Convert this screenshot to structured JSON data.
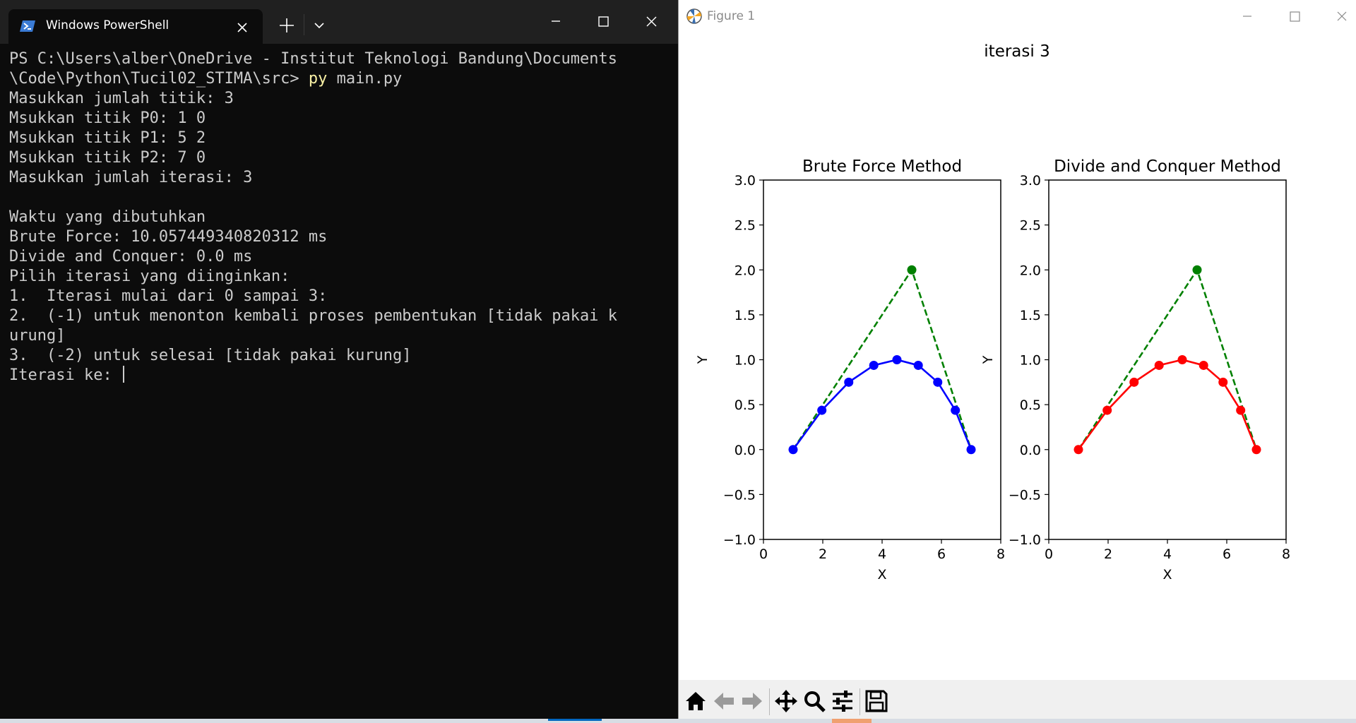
{
  "terminal": {
    "tab_title": "Windows PowerShell",
    "prompt_path": "PS C:\\Users\\alber\\OneDrive - Institut Teknologi Bandung\\Documents",
    "prompt_path_cont": "\\Code\\Python\\Tucil02_STIMA\\src> ",
    "command_keyword": "py",
    "command_args": " main.py",
    "lines": [
      "Masukkan jumlah titik: 3",
      "Msukkan titik P0: 1 0",
      "Msukkan titik P1: 5 2",
      "Msukkan titik P2: 7 0",
      "Masukkan jumlah iterasi: 3",
      "",
      "Waktu yang dibutuhkan",
      "Brute Force: 10.057449340820312 ms",
      "Divide and Conquer: 0.0 ms",
      "Pilih iterasi yang diinginkan:",
      "1.  Iterasi mulai dari 0 sampai 3:",
      "2.  (-1) untuk menonton kembali proses pembentukan [tidak pakai k",
      "urung]",
      "3.  (-2) untuk selesai [tidak pakai kurung]"
    ],
    "input_prompt": "Iterasi ke: "
  },
  "figure": {
    "window_title": "Figure 1",
    "suptitle": "iterasi 3"
  },
  "chart_data": [
    {
      "type": "line",
      "title": "Brute Force Method",
      "xlabel": "X",
      "ylabel": "Y",
      "xlim": [
        0,
        8
      ],
      "ylim": [
        -1.0,
        3.0
      ],
      "xticks": [
        "0",
        "2",
        "4",
        "6",
        "8"
      ],
      "yticks": [
        "−1.0",
        "−0.5",
        "0.0",
        "0.5",
        "1.0",
        "1.5",
        "2.0",
        "2.5",
        "3.0"
      ],
      "series": [
        {
          "style": "dashed",
          "color": "#008000",
          "x": [
            1,
            5,
            7
          ],
          "y": [
            0,
            2,
            0
          ]
        },
        {
          "style": "solid-markers",
          "color": "#0000ff",
          "x": [
            1,
            1.969,
            2.875,
            3.719,
            4.5,
            5.219,
            5.875,
            6.469,
            7
          ],
          "y": [
            0,
            0.4375,
            0.75,
            0.9375,
            1.0,
            0.9375,
            0.75,
            0.4375,
            0
          ]
        }
      ]
    },
    {
      "type": "line",
      "title": "Divide and Conquer Method",
      "xlabel": "X",
      "ylabel": "Y",
      "xlim": [
        0,
        8
      ],
      "ylim": [
        -1.0,
        3.0
      ],
      "xticks": [
        "0",
        "2",
        "4",
        "6",
        "8"
      ],
      "yticks": [
        "−1.0",
        "−0.5",
        "0.0",
        "0.5",
        "1.0",
        "1.5",
        "2.0",
        "2.5",
        "3.0"
      ],
      "series": [
        {
          "style": "dashed",
          "color": "#008000",
          "x": [
            1,
            5,
            7
          ],
          "y": [
            0,
            2,
            0
          ]
        },
        {
          "style": "solid-markers",
          "color": "#ff0000",
          "x": [
            1,
            1.969,
            2.875,
            3.719,
            4.5,
            5.219,
            5.875,
            6.469,
            7
          ],
          "y": [
            0,
            0.4375,
            0.75,
            0.9375,
            1.0,
            0.9375,
            0.75,
            0.4375,
            0
          ]
        }
      ]
    }
  ]
}
